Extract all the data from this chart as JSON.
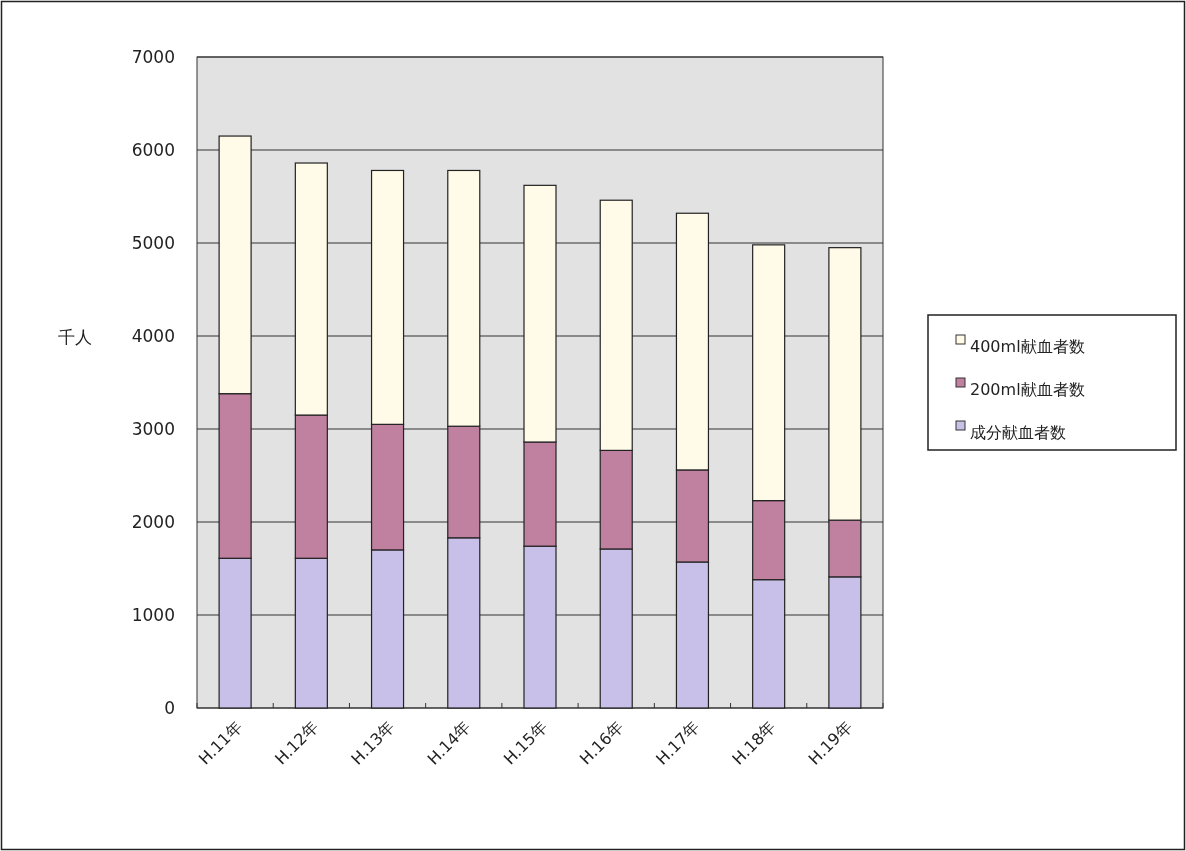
{
  "chart_data": {
    "type": "bar",
    "stacked": true,
    "ylabel": "千人",
    "categories": [
      "H.11年",
      "H.12年",
      "H.13年",
      "H.14年",
      "H.15年",
      "H.16年",
      "H.17年",
      "H.18年",
      "H.19年"
    ],
    "series": [
      {
        "name": "成分献血者数",
        "color": "#c8c0e8",
        "values": [
          1610,
          1610,
          1700,
          1830,
          1740,
          1710,
          1570,
          1380,
          1410
        ]
      },
      {
        "name": "200ml献血者数",
        "color": "#c080a0",
        "values": [
          1770,
          1540,
          1350,
          1200,
          1120,
          1060,
          990,
          850,
          610
        ]
      },
      {
        "name": "400ml献血者数",
        "color": "#fffbe8",
        "values": [
          2770,
          2710,
          2730,
          2750,
          2760,
          2690,
          2760,
          2750,
          2930
        ]
      }
    ],
    "ylim": [
      0,
      7000
    ],
    "yticks": [
      0,
      1000,
      2000,
      3000,
      4000,
      5000,
      6000,
      7000
    ],
    "grid": "y",
    "legend": "right"
  }
}
